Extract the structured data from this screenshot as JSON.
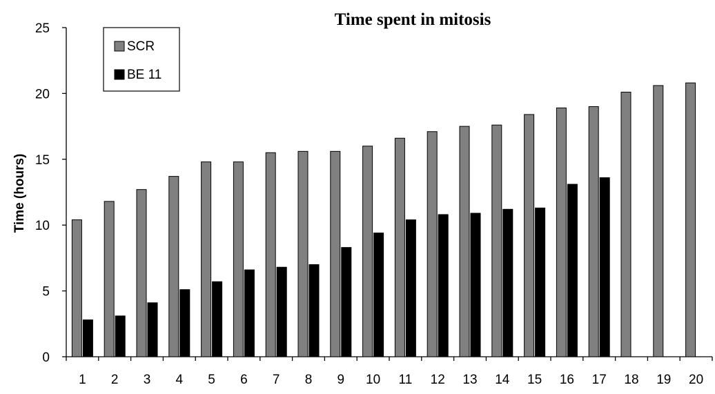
{
  "chart_data": {
    "type": "bar",
    "title": "Time spent in mitosis",
    "xlabel": "",
    "ylabel": "Time (hours)",
    "ylim": [
      0,
      25
    ],
    "yticks": [
      0,
      5,
      10,
      15,
      20,
      25
    ],
    "grid": false,
    "legend_position": "top-left",
    "categories": [
      "1",
      "2",
      "3",
      "4",
      "5",
      "6",
      "7",
      "8",
      "9",
      "10",
      "11",
      "12",
      "13",
      "14",
      "15",
      "16",
      "17",
      "18",
      "19",
      "20"
    ],
    "series": [
      {
        "name": "SCR",
        "color": "#808080",
        "values": [
          10.4,
          11.8,
          12.7,
          13.7,
          14.8,
          14.8,
          15.5,
          15.6,
          15.6,
          16.0,
          16.6,
          17.1,
          17.5,
          17.6,
          18.4,
          18.9,
          19.0,
          20.1,
          20.6,
          20.8
        ]
      },
      {
        "name": "BE11",
        "color": "#000000",
        "values": [
          2.8,
          3.1,
          4.1,
          5.1,
          5.7,
          6.6,
          6.8,
          7.0,
          8.3,
          9.4,
          10.4,
          10.8,
          10.9,
          11.2,
          11.3,
          13.1,
          13.6,
          null,
          null,
          null
        ]
      }
    ],
    "legend": [
      {
        "label": "SCR",
        "color": "#808080"
      },
      {
        "label": "BE 11",
        "color": "#000000"
      }
    ]
  }
}
